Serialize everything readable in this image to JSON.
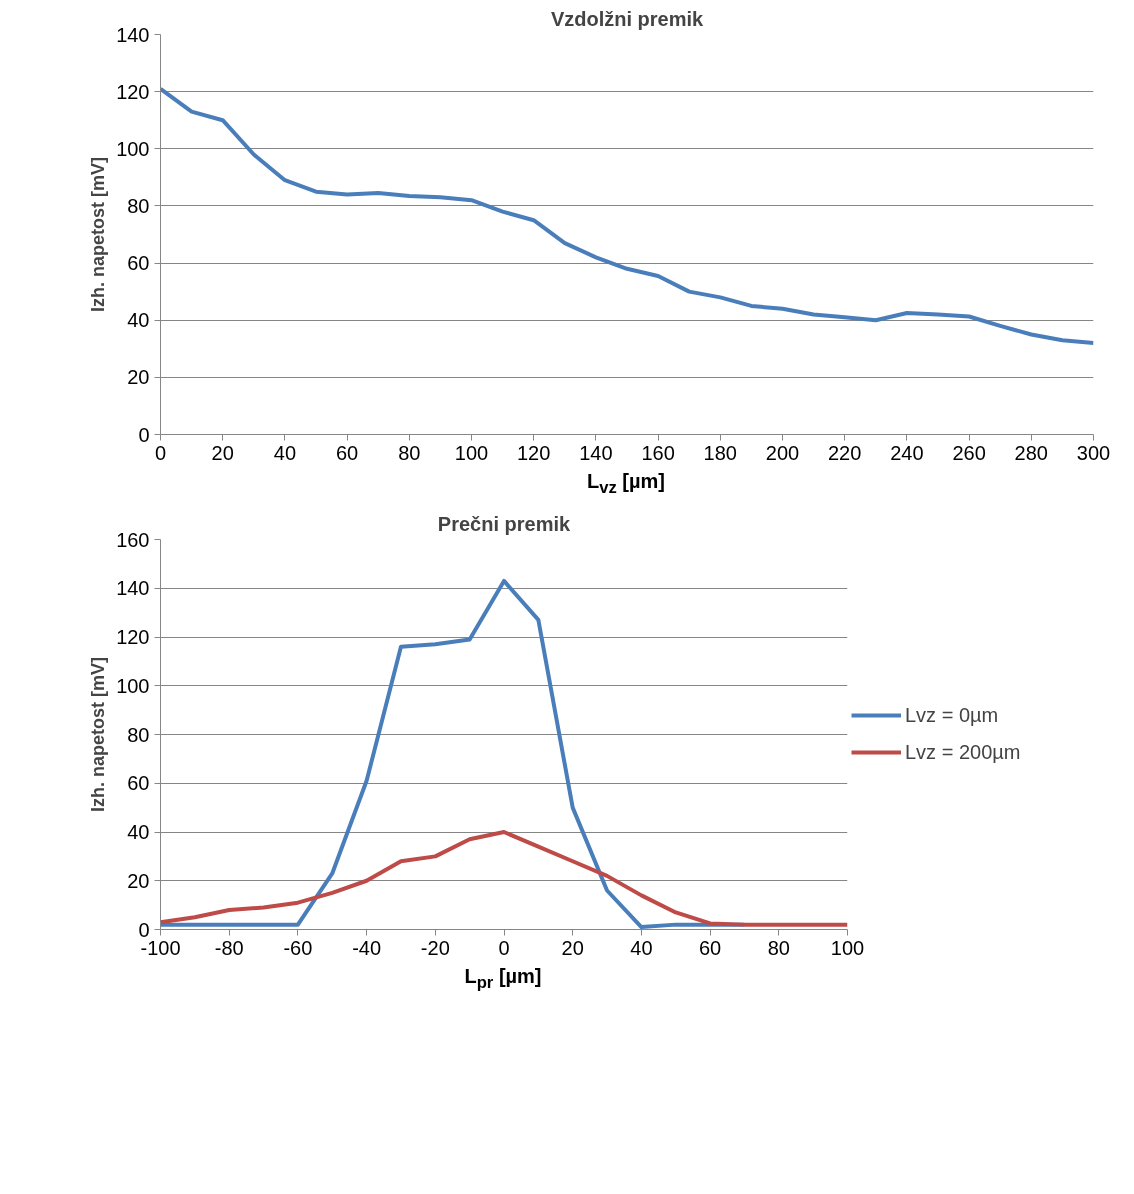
{
  "chart_data": [
    {
      "type": "line",
      "title": "Vzdolžni premik",
      "xlabel": "L$_{vz}$ [µm]",
      "ylabel": "Izh. napetost [mV]",
      "x": [
        0,
        10,
        20,
        30,
        40,
        50,
        60,
        70,
        80,
        90,
        100,
        110,
        120,
        130,
        140,
        150,
        160,
        170,
        180,
        190,
        200,
        210,
        220,
        230,
        240,
        250,
        260,
        270,
        280,
        290,
        300
      ],
      "series": [
        {
          "color": "#4a7ebb",
          "values": [
            121,
            113,
            110,
            98,
            89,
            85,
            84,
            84.5,
            83.5,
            83,
            82,
            78,
            75,
            67,
            62,
            58,
            55.5,
            50,
            48,
            45,
            44,
            42,
            41,
            40,
            42.5,
            42,
            41.3,
            38,
            35,
            33,
            32
          ]
        }
      ],
      "xlim": [
        0,
        300
      ],
      "xticks": [
        0,
        20,
        40,
        60,
        80,
        100,
        120,
        140,
        160,
        180,
        200,
        220,
        240,
        260,
        280,
        300
      ],
      "ylim": [
        0,
        140
      ],
      "yticks": [
        0,
        20,
        40,
        60,
        80,
        100,
        120,
        140
      ],
      "grid": "y",
      "legend": false
    },
    {
      "type": "line",
      "title": "Prečni premik",
      "xlabel": "L$_{pr}$ [µm]",
      "ylabel": "Izh. napetost [mV]",
      "x": [
        -100,
        -90,
        -80,
        -70,
        -60,
        -50,
        -40,
        -30,
        -20,
        -10,
        0,
        10,
        20,
        30,
        40,
        50,
        60,
        70,
        80,
        90,
        100
      ],
      "series": [
        {
          "name": "Lvz = 0µm",
          "color": "#4a7ebb",
          "values": [
            2,
            2,
            2,
            2,
            2,
            23,
            61,
            116,
            117,
            119,
            143,
            127,
            50,
            16,
            1,
            2,
            2,
            2,
            null,
            null,
            null
          ]
        },
        {
          "name": "Lvz = 200µm",
          "color": "#be4b48",
          "values": [
            3,
            5,
            8,
            9,
            11,
            15,
            20,
            28,
            30,
            37,
            40,
            34,
            28,
            22,
            14,
            7,
            2.5,
            2,
            2,
            2,
            2
          ]
        }
      ],
      "xlim": [
        -100,
        100
      ],
      "xticks": [
        -100,
        -80,
        -60,
        -40,
        -20,
        0,
        20,
        40,
        60,
        80,
        100
      ],
      "ylim": [
        0,
        160
      ],
      "yticks": [
        0,
        20,
        40,
        60,
        80,
        100,
        120,
        140,
        160
      ],
      "grid": "y",
      "legend": "right"
    }
  ]
}
